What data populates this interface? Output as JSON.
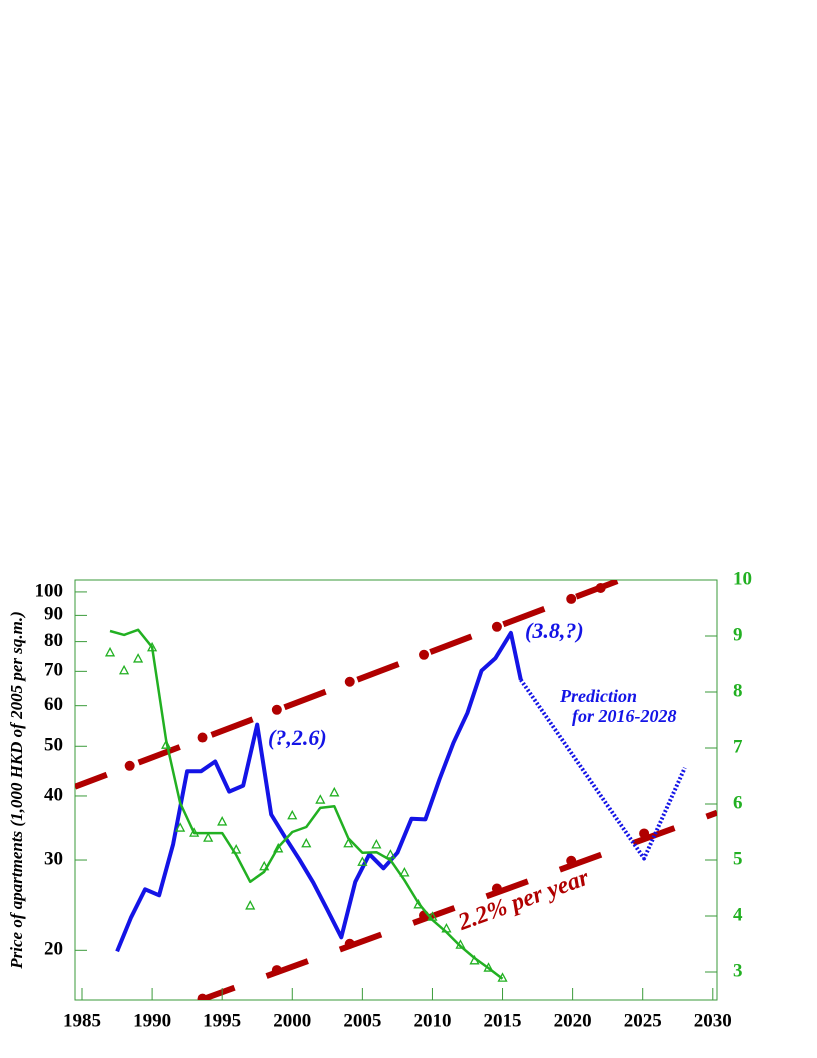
{
  "chart_data": {
    "type": "line",
    "y_label": "Price of apartments (1,000 HKD of 2005 per sq.m.)",
    "log_y": true,
    "xlim": [
      1984.5,
      2030.3
    ],
    "xticks": [
      1985,
      1990,
      1995,
      2000,
      2005,
      2010,
      2015,
      2020,
      2025,
      2030
    ],
    "ylim": [
      16,
      105.5
    ],
    "yticks": [
      20,
      30,
      40,
      50,
      60,
      70,
      80,
      90,
      100
    ],
    "y2lim": [
      2.5,
      10
    ],
    "y2ticks": [
      3,
      4,
      5,
      6,
      7,
      8,
      9,
      10
    ],
    "series": [
      {
        "style": "dashed",
        "color": "#b00000",
        "x": [
          1984.5,
          2023.4
        ],
        "values": [
          41.7,
          105.5
        ]
      },
      {
        "style": "dashed",
        "color": "#b00000",
        "x": [
          1993.6,
          2030.3
        ],
        "values": [
          16.05,
          37.1
        ]
      },
      {
        "style": "dots",
        "color": "#b00000",
        "x": [
          1988.4,
          1993.6,
          1998.9,
          2004.1,
          2009.4,
          2014.6,
          2019.9,
          2022.0
        ],
        "values": [
          45.8,
          52.0,
          58.9,
          66.8,
          75.4,
          85.5,
          96.9,
          101.8
        ]
      },
      {
        "style": "dots",
        "color": "#b00000",
        "x": [
          1993.6,
          1998.9,
          2004.1,
          2009.4,
          2014.6,
          2019.9,
          2025.1
        ],
        "values": [
          16.1,
          18.3,
          20.6,
          23.4,
          26.4,
          29.9,
          33.8
        ]
      },
      {
        "style": "solid",
        "color": "#1414e6",
        "x": [
          1987.5,
          1988.5,
          1989.5,
          1990.5,
          1991.5,
          1992.5,
          1993.5,
          1994.5,
          1995.5,
          1996.5,
          1997.5,
          1998.5,
          1999.5,
          2000.5,
          2001.5,
          2002.5,
          2003.5,
          2004.5,
          2005.5,
          2006.5,
          2007.5,
          2008.5,
          2009.5,
          2010.5,
          2011.5,
          2012.5,
          2013.5,
          2014.5,
          2015.6,
          2016.3
        ],
        "values": [
          19.9,
          23.2,
          26.3,
          25.6,
          32.2,
          44.7,
          44.7,
          46.7,
          40.8,
          41.9,
          55.1,
          36.8,
          33.2,
          30.1,
          27.1,
          24.0,
          21.2,
          27.2,
          30.8,
          28.9,
          31.0,
          36.1,
          36.0,
          43.1,
          50.8,
          58.1,
          70.2,
          74.3,
          83.2,
          67.4
        ]
      },
      {
        "style": "dotted",
        "color": "#1414e6",
        "x": [
          2016.3,
          2025.1,
          2028.0
        ],
        "values": [
          67.4,
          30.2,
          45.4
        ]
      },
      {
        "style": "solid",
        "color": "#22b022",
        "axis": "y2",
        "x": [
          1987,
          1988,
          1989,
          1990,
          1991,
          1992,
          1993,
          1994,
          1995,
          1996,
          1997,
          1998,
          1999,
          2000,
          2001,
          2002,
          2003,
          2004,
          2005,
          2006,
          2007,
          2008,
          2009,
          2010,
          2011,
          2012,
          2013,
          2014,
          2015
        ],
        "values": [
          9.09,
          9.02,
          9.11,
          8.8,
          7.14,
          6.02,
          5.48,
          5.48,
          5.48,
          5.09,
          4.61,
          4.79,
          5.23,
          5.5,
          5.59,
          5.93,
          5.96,
          5.39,
          5.13,
          5.14,
          5.0,
          4.64,
          4.23,
          3.93,
          3.71,
          3.46,
          3.25,
          3.07,
          2.88
        ]
      },
      {
        "style": "triangles",
        "color": "#22b022",
        "axis": "y2",
        "x": [
          1987,
          1988,
          1989,
          1990,
          1991,
          1992,
          1993,
          1994,
          1995,
          1996,
          1997,
          1998,
          1999,
          2000,
          2001,
          2002,
          2003,
          2004,
          2005,
          2006,
          2007,
          2008,
          2009,
          2010,
          2011,
          2012,
          2013,
          2014,
          2015
        ],
        "values": [
          8.7,
          8.38,
          8.59,
          8.79,
          7.05,
          5.57,
          5.48,
          5.39,
          5.68,
          5.18,
          4.18,
          4.88,
          5.2,
          5.79,
          5.29,
          6.07,
          6.2,
          5.29,
          4.96,
          5.27,
          5.09,
          4.77,
          4.2,
          3.98,
          3.77,
          3.48,
          3.2,
          3.07,
          2.89
        ]
      }
    ],
    "annotations": [
      {
        "text": "(?,2.6)",
        "color": "#1414e6"
      },
      {
        "text": "(3.8,?)",
        "color": "#1414e6"
      },
      {
        "text": "Prediction",
        "color": "#1414e6"
      },
      {
        "text": "for 2016-2028",
        "color": "#1414e6"
      },
      {
        "text": "2.2% per year",
        "color": "#b00000"
      }
    ]
  }
}
